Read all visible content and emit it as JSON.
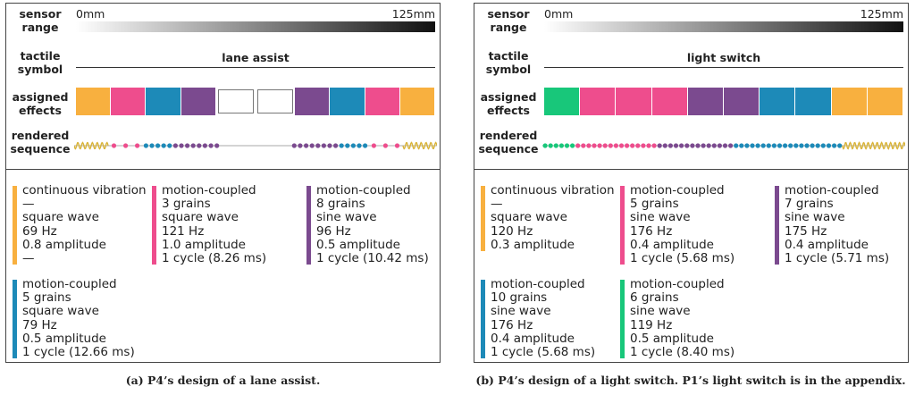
{
  "row_labels": {
    "sensor_range": [
      "sensor",
      "range"
    ],
    "tactile_symbol": [
      "tactile",
      "symbol"
    ],
    "assigned_effects": [
      "assigned",
      "effects"
    ],
    "rendered_sequence": [
      "rendered",
      "sequence"
    ]
  },
  "colors": {
    "orange": "#f8b03f",
    "pink": "#ee4d8d",
    "blue": "#1d8ab8",
    "purple": "#7b4a8f",
    "green": "#18c77a",
    "wave": "#d9b43a",
    "line": "#aaaaaa"
  },
  "panels": [
    {
      "range_min": "0mm",
      "range_max": "125mm",
      "symbol": "lane assist",
      "effects": [
        "orange",
        "pink",
        "blue",
        "purple",
        "blank",
        "blank",
        "purple",
        "blue",
        "pink",
        "orange"
      ],
      "sequence": [
        {
          "kind": "wave",
          "color": "orange",
          "count": 1
        },
        {
          "kind": "dots",
          "color": "pink",
          "count": 3,
          "connected": true
        },
        {
          "kind": "dots",
          "color": "blue",
          "count": 5
        },
        {
          "kind": "dots",
          "color": "purple",
          "count": 8
        },
        {
          "kind": "gap",
          "count": 2
        },
        {
          "kind": "dots",
          "color": "purple",
          "count": 8
        },
        {
          "kind": "dots",
          "color": "blue",
          "count": 5
        },
        {
          "kind": "dots",
          "color": "pink",
          "count": 3,
          "connected": true
        },
        {
          "kind": "wave",
          "color": "orange",
          "count": 1
        }
      ],
      "legend": [
        {
          "color": "orange",
          "lines": [
            "continuous vibration",
            "—",
            "square wave",
            "69 Hz",
            "0.8 amplitude",
            "—"
          ]
        },
        {
          "color": "pink",
          "lines": [
            "motion-coupled",
            "3 grains",
            "square wave",
            "121 Hz",
            "1.0 amplitude",
            "1 cycle (8.26 ms)"
          ]
        },
        {
          "color": "purple",
          "lines": [
            "motion-coupled",
            "8 grains",
            "sine wave",
            "96 Hz",
            "0.5 amplitude",
            "1 cycle (10.42 ms)"
          ]
        },
        {
          "color": "blue",
          "lines": [
            "motion-coupled",
            "5 grains",
            "square wave",
            "79 Hz",
            "0.5 amplitude",
            "1 cycle (12.66 ms)"
          ]
        }
      ],
      "caption": "(a) P4’s design of a lane assist."
    },
    {
      "range_min": "0mm",
      "range_max": "125mm",
      "symbol": "light switch",
      "effects": [
        "green",
        "pink",
        "pink",
        "pink",
        "purple",
        "purple",
        "blue",
        "blue",
        "orange",
        "orange"
      ],
      "sequence": [
        {
          "kind": "dots",
          "color": "green",
          "count": 6
        },
        {
          "kind": "dots",
          "color": "pink",
          "count": 15
        },
        {
          "kind": "dots",
          "color": "purple",
          "count": 14
        },
        {
          "kind": "dots",
          "color": "blue",
          "count": 20
        },
        {
          "kind": "wave",
          "color": "orange",
          "count": 2
        }
      ],
      "legend": [
        {
          "color": "orange",
          "lines": [
            "continuous vibration",
            "—",
            "square wave",
            "120 Hz",
            "0.3 amplitude"
          ]
        },
        {
          "color": "pink",
          "lines": [
            "motion-coupled",
            "5 grains",
            "sine wave",
            "176 Hz",
            "0.4 amplitude",
            "1 cycle (5.68 ms)"
          ]
        },
        {
          "color": "purple",
          "lines": [
            "motion-coupled",
            "7 grains",
            "sine wave",
            "175 Hz",
            "0.4 amplitude",
            "1 cycle (5.71 ms)"
          ]
        },
        {
          "color": "blue",
          "lines": [
            "motion-coupled",
            "10 grains",
            "sine wave",
            "176 Hz",
            "0.4 amplitude",
            "1 cycle (5.68 ms)"
          ]
        },
        {
          "color": "green",
          "lines": [
            "motion-coupled",
            "6 grains",
            "sine wave",
            "119 Hz",
            "0.5 amplitude",
            "1 cycle (8.40 ms)"
          ]
        }
      ],
      "caption": "(b) P4’s design of a light switch. P1’s light switch is in the appendix."
    }
  ]
}
